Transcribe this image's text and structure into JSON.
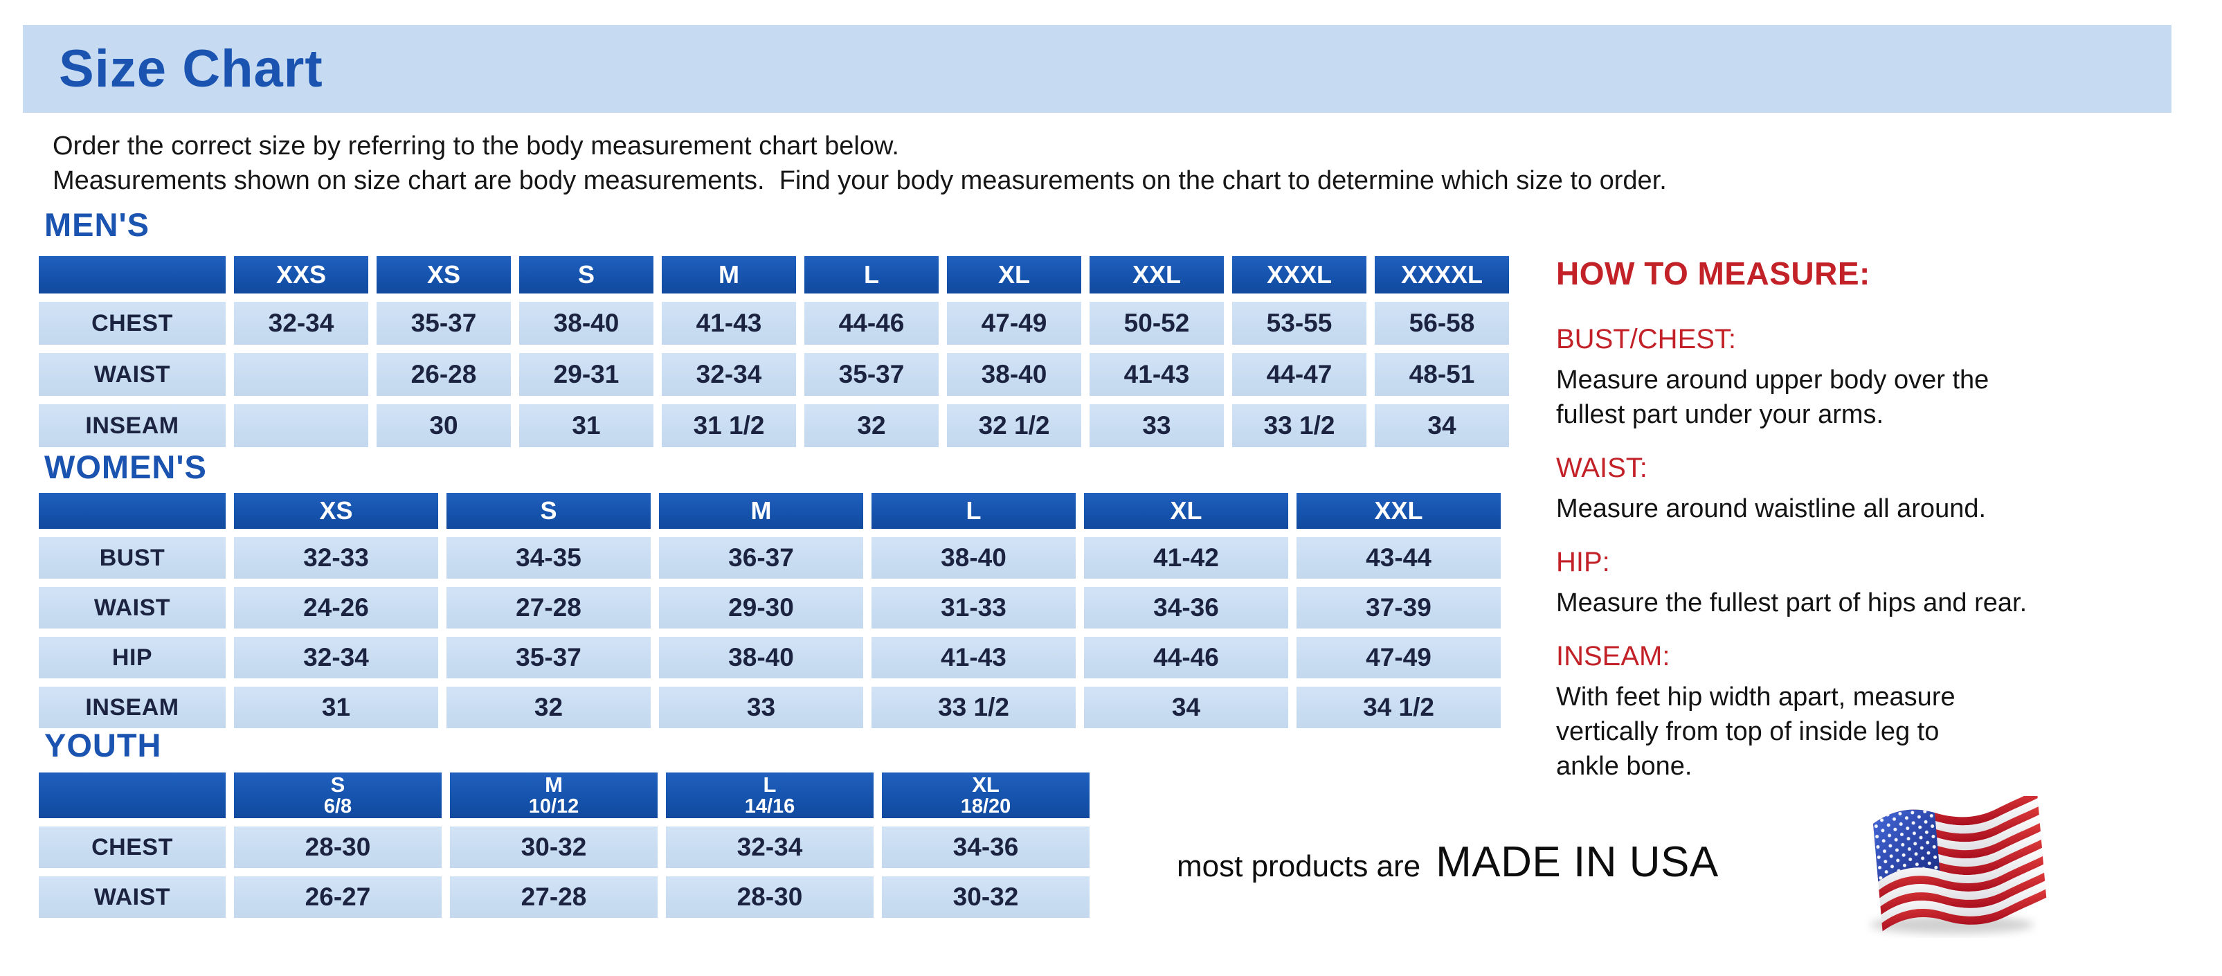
{
  "page": {
    "title": "Size Chart",
    "intro_line1": "Order the correct size by referring to the body measurement chart below.",
    "intro_line2": "Measurements shown on size chart are body measurements.  Find your body measurements on the chart to determine which size to order."
  },
  "tables": {
    "mens": {
      "heading": "MEN'S",
      "col_headers": [
        "XXS",
        "XS",
        "S",
        "M",
        "L",
        "XL",
        "XXL",
        "XXXL",
        "XXXXL"
      ],
      "rows": [
        {
          "label": "CHEST",
          "values": [
            "32-34",
            "35-37",
            "38-40",
            "41-43",
            "44-46",
            "47-49",
            "50-52",
            "53-55",
            "56-58"
          ]
        },
        {
          "label": "WAIST",
          "values": [
            "",
            "26-28",
            "29-31",
            "32-34",
            "35-37",
            "38-40",
            "41-43",
            "44-47",
            "48-51"
          ]
        },
        {
          "label": "INSEAM",
          "values": [
            "",
            "30",
            "31",
            "31 1/2",
            "32",
            "32 1/2",
            "33",
            "33 1/2",
            "34"
          ]
        }
      ]
    },
    "womens": {
      "heading": "WOMEN'S",
      "col_headers": [
        "XS",
        "S",
        "M",
        "L",
        "XL",
        "XXL"
      ],
      "rows": [
        {
          "label": "BUST",
          "values": [
            "32-33",
            "34-35",
            "36-37",
            "38-40",
            "41-42",
            "43-44"
          ]
        },
        {
          "label": "WAIST",
          "values": [
            "24-26",
            "27-28",
            "29-30",
            "31-33",
            "34-36",
            "37-39"
          ]
        },
        {
          "label": "HIP",
          "values": [
            "32-34",
            "35-37",
            "38-40",
            "41-43",
            "44-46",
            "47-49"
          ]
        },
        {
          "label": "INSEAM",
          "values": [
            "31",
            "32",
            "33",
            "33 1/2",
            "34",
            "34 1/2"
          ]
        }
      ]
    },
    "youth": {
      "heading": "YOUTH",
      "col_headers": [
        {
          "size": "S",
          "range": "6/8"
        },
        {
          "size": "M",
          "range": "10/12"
        },
        {
          "size": "L",
          "range": "14/16"
        },
        {
          "size": "XL",
          "range": "18/20"
        }
      ],
      "rows": [
        {
          "label": "CHEST",
          "values": [
            "28-30",
            "30-32",
            "32-34",
            "34-36"
          ]
        },
        {
          "label": "WAIST",
          "values": [
            "26-27",
            "27-28",
            "28-30",
            "30-32"
          ]
        }
      ]
    }
  },
  "how_to_measure": {
    "title": "HOW TO MEASURE:",
    "sections": [
      {
        "label": "BUST/CHEST:",
        "text": "Measure around upper body over the\nfullest part under your arms."
      },
      {
        "label": "WAIST:",
        "text": "Measure around waistline all around."
      },
      {
        "label": "HIP:",
        "text": "Measure the fullest part of hips and rear."
      },
      {
        "label": "INSEAM:",
        "text": "With feet hip width apart, measure\nvertically from top of inside leg to\nankle bone."
      }
    ]
  },
  "footer": {
    "prefix": "most products are",
    "emphasis": "MADE IN USA",
    "flag_icon": "usa-flag"
  },
  "colors": {
    "banner_bg": "#c6daf2",
    "heading_blue": "#1b54b0",
    "table_header_blue": "#1553ad",
    "table_cell_blue": "#c8dcf1",
    "cell_text_navy": "#1b2340",
    "accent_red": "#c22128"
  }
}
